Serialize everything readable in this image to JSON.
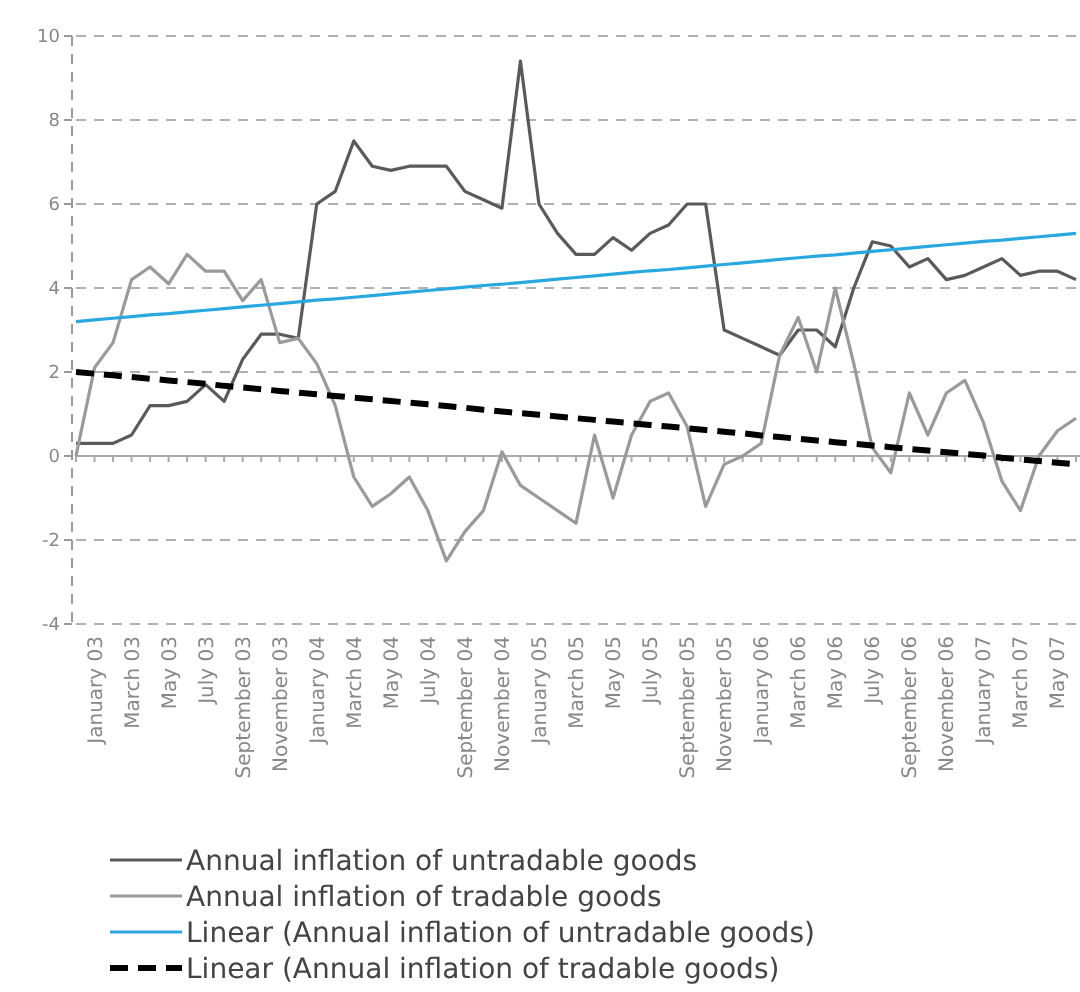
{
  "chart_data": {
    "type": "line",
    "categories": [
      null,
      "January 03",
      null,
      "March 03",
      null,
      "May 03",
      null,
      "July 03",
      null,
      "September 03",
      null,
      "November 03",
      null,
      "January 04",
      null,
      "March 04",
      null,
      "May 04",
      null,
      "July 04",
      null,
      "September 04",
      null,
      "November 04",
      null,
      "January 05",
      null,
      "March 05",
      null,
      "May 05",
      null,
      "July 05",
      null,
      "September 05",
      null,
      "November 05",
      null,
      "January 06",
      null,
      "March 06",
      null,
      "May 06",
      null,
      "July 06",
      null,
      "September 06",
      null,
      "November 06",
      null,
      "January 07",
      null,
      "March 07",
      null,
      "May 07",
      null
    ],
    "series": [
      {
        "name": "Annual inflation of untradable goods",
        "color": "#5a5a5a",
        "values": [
          0.3,
          0.3,
          0.3,
          0.5,
          1.2,
          1.2,
          1.3,
          1.7,
          1.3,
          2.3,
          2.9,
          2.9,
          2.8,
          6.0,
          6.3,
          7.5,
          6.9,
          6.8,
          6.9,
          6.9,
          6.9,
          6.3,
          6.1,
          5.9,
          9.4,
          6.0,
          5.3,
          4.8,
          4.8,
          5.2,
          4.9,
          5.3,
          5.5,
          6.0,
          6.0,
          3.0,
          2.8,
          2.6,
          2.4,
          3.0,
          3.0,
          2.6,
          4.0,
          5.1,
          5.0,
          4.5,
          4.7,
          4.2,
          4.3,
          4.5,
          4.7,
          4.3,
          4.4,
          4.4,
          4.2
        ]
      },
      {
        "name": "Annual inflation of tradable goods",
        "color": "#9a9a9a",
        "values": [
          0.0,
          2.1,
          2.7,
          4.2,
          4.5,
          4.1,
          4.8,
          4.4,
          4.4,
          3.7,
          4.2,
          2.7,
          2.8,
          2.2,
          1.2,
          -0.5,
          -1.2,
          -0.9,
          -0.5,
          -1.3,
          -2.5,
          -1.8,
          -1.3,
          0.1,
          -0.7,
          -1.0,
          -1.3,
          -1.6,
          0.5,
          -1.0,
          0.5,
          1.3,
          1.5,
          0.7,
          -1.2,
          -0.2,
          0.0,
          0.3,
          2.4,
          3.3,
          2.0,
          4.0,
          2.2,
          0.2,
          -0.4,
          1.5,
          0.5,
          1.5,
          1.8,
          0.8,
          -0.6,
          -1.3,
          0.0,
          0.6,
          0.9
        ]
      },
      {
        "name": "Linear (Annual inflation of untradable goods)",
        "color": "#29a8e0",
        "line_style": "solid",
        "values": [
          3.2,
          3.24,
          3.28,
          3.32,
          3.36,
          3.39,
          3.43,
          3.47,
          3.51,
          3.55,
          3.59,
          3.63,
          3.67,
          3.71,
          3.74,
          3.78,
          3.82,
          3.86,
          3.9,
          3.94,
          3.98,
          4.02,
          4.06,
          4.09,
          4.13,
          4.17,
          4.21,
          4.25,
          4.29,
          4.33,
          4.37,
          4.41,
          4.44,
          4.48,
          4.52,
          4.56,
          4.6,
          4.64,
          4.68,
          4.72,
          4.76,
          4.79,
          4.83,
          4.87,
          4.91,
          4.95,
          4.99,
          5.03,
          5.07,
          5.11,
          5.14,
          5.18,
          5.22,
          5.26,
          5.3
        ]
      },
      {
        "name": "Linear (Annual inflation of tradable goods)",
        "color": "#000000",
        "line_style": "dashed",
        "values": [
          2.0,
          1.96,
          1.92,
          1.88,
          1.84,
          1.8,
          1.76,
          1.72,
          1.67,
          1.63,
          1.59,
          1.55,
          1.51,
          1.47,
          1.43,
          1.39,
          1.35,
          1.31,
          1.27,
          1.23,
          1.19,
          1.15,
          1.1,
          1.06,
          1.02,
          0.98,
          0.94,
          0.9,
          0.86,
          0.82,
          0.78,
          0.74,
          0.7,
          0.66,
          0.62,
          0.58,
          0.54,
          0.49,
          0.45,
          0.41,
          0.37,
          0.33,
          0.29,
          0.25,
          0.21,
          0.17,
          0.13,
          0.09,
          0.05,
          0.01,
          -0.04,
          -0.08,
          -0.12,
          -0.16,
          -0.2
        ]
      }
    ],
    "ylim": [
      -4,
      10
    ],
    "yticks": [
      -4,
      -2,
      0,
      2,
      4,
      6,
      8,
      10
    ],
    "grid": "y",
    "legend": "bottom",
    "marker": "none"
  }
}
